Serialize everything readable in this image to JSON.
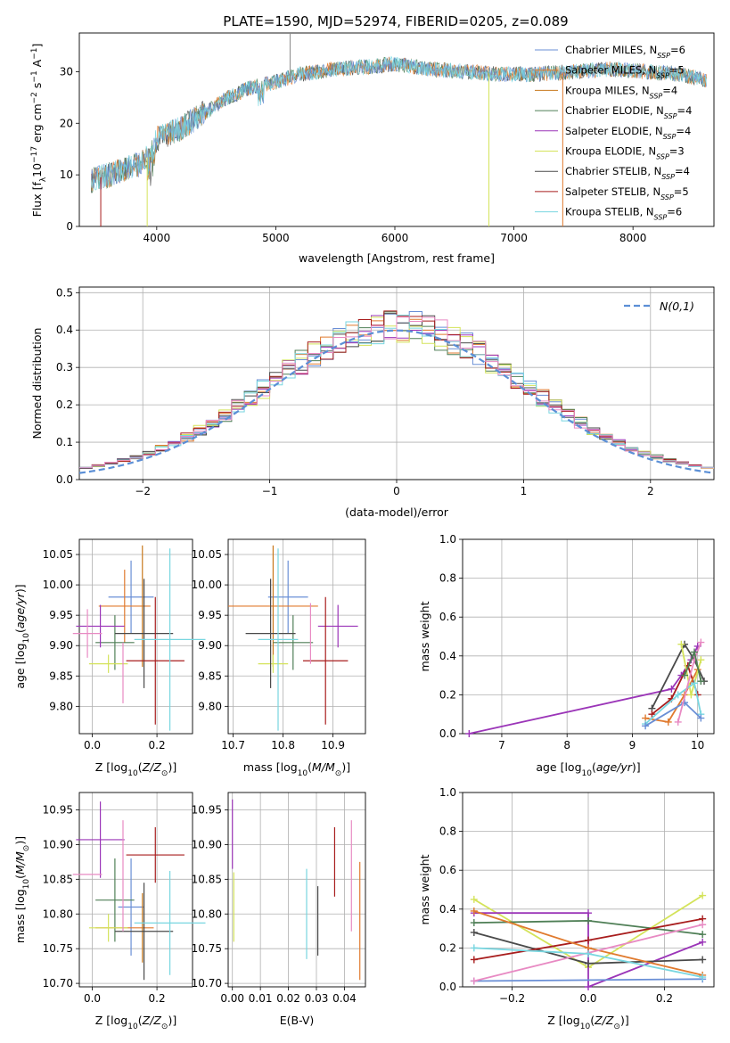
{
  "figure": {
    "title": "PLATE=1590, MJD=52974, FIBERID=0205, z=0.089"
  },
  "colors": {
    "Chabrier MILES": "#6a8fd6",
    "Salpeter MILES": "#e07a2e",
    "Kroupa MILES": "#c87a1e",
    "Chabrier ELODIE": "#4f7f56",
    "Salpeter ELODIE": "#9b35b8",
    "Kroupa ELODIE": "#d4e35a",
    "Chabrier STELIB": "#4a4a4a",
    "Salpeter STELIB": "#a81d1d",
    "Kroupa STELIB": "#78d6e0",
    "pink": "#e88ac3",
    "gaussian": "#5b8fd6"
  },
  "chart_data": [
    {
      "id": "spectrum",
      "type": "line",
      "title": "PLATE=1590, MJD=52974, FIBERID=0205, z=0.089",
      "xlabel": "wavelength [Angstrom, rest frame]",
      "ylabel": "Flux [f_λ 10^-17 erg cm^-2 s^-1 A^-1]",
      "xlim": [
        3350,
        8680
      ],
      "ylim": [
        0,
        37.5
      ],
      "xticks": [
        4000,
        5000,
        6000,
        7000,
        8000
      ],
      "yticks": [
        0,
        10,
        20,
        30
      ],
      "legend_position": "right",
      "legend": [
        {
          "label": "Chabrier MILES, N",
          "sub": "SSP",
          "tail": "=6"
        },
        {
          "label": "Salpeter MILES, N",
          "sub": "SSP",
          "tail": "=5"
        },
        {
          "label": "Kroupa MILES, N",
          "sub": "SSP",
          "tail": "=4"
        },
        {
          "label": "Chabrier ELODIE, N",
          "sub": "SSP",
          "tail": "=4"
        },
        {
          "label": "Salpeter ELODIE, N",
          "sub": "SSP",
          "tail": "=4"
        },
        {
          "label": "Kroupa ELODIE, N",
          "sub": "SSP",
          "tail": "=3"
        },
        {
          "label": "Chabrier STELIB, N",
          "sub": "SSP",
          "tail": "=4"
        },
        {
          "label": "Salpeter STELIB, N",
          "sub": "SSP",
          "tail": "=5"
        },
        {
          "label": "Kroupa STELIB, N",
          "sub": "SSP",
          "tail": "=6"
        }
      ],
      "continuum": [
        [
          3450,
          9
        ],
        [
          3600,
          10
        ],
        [
          3700,
          11
        ],
        [
          3850,
          12
        ],
        [
          3900,
          13
        ],
        [
          3950,
          14
        ],
        [
          4000,
          17
        ],
        [
          4200,
          19
        ],
        [
          4400,
          22
        ],
        [
          4600,
          25
        ],
        [
          4800,
          27
        ],
        [
          5000,
          28
        ],
        [
          5200,
          29.5
        ],
        [
          5500,
          30.5
        ],
        [
          5800,
          31
        ],
        [
          6000,
          31.5
        ],
        [
          6300,
          30.5
        ],
        [
          6600,
          30
        ],
        [
          6900,
          29.5
        ],
        [
          7200,
          29.5
        ],
        [
          7500,
          30
        ],
        [
          7800,
          30.5
        ],
        [
          8100,
          30
        ],
        [
          8400,
          29.5
        ],
        [
          8600,
          28.5
        ]
      ],
      "spikes": [
        {
          "x": 5120,
          "y": 37.5
        },
        {
          "x": 5120,
          "y": 37.5
        }
      ],
      "drops": [
        {
          "x": 3530,
          "label": "Salpeter STELIB"
        },
        {
          "x": 3920,
          "label": "Kroupa ELODIE"
        },
        {
          "x": 6790,
          "label": "Kroupa ELODIE"
        },
        {
          "x": 7410,
          "label": "Salpeter MILES"
        }
      ]
    },
    {
      "id": "residuals",
      "type": "line",
      "xlabel": "(data-model)/error",
      "ylabel": "Normed distribution",
      "xlim": [
        -2.5,
        2.5
      ],
      "ylim": [
        0,
        0.515
      ],
      "xticks": [
        -2,
        -1,
        0,
        1,
        2
      ],
      "yticks": [
        0.0,
        0.1,
        0.2,
        0.3,
        0.4,
        0.5
      ],
      "grid": true,
      "legend_position": "top-right",
      "gaussian_label": "N(0,1)",
      "bin_width": 0.1
    },
    {
      "id": "age_vs_Z",
      "type": "scatter",
      "xlabel": "Z [log10(Z/Z_sun)]",
      "ylabel": "age [log10(age/yr)]",
      "xlim": [
        -0.04,
        0.31
      ],
      "ylim": [
        9.755,
        10.075
      ],
      "xticks": [
        0.0,
        0.2
      ],
      "yticks": [
        9.8,
        9.85,
        9.9,
        9.95,
        10.0,
        10.05
      ],
      "grid": true,
      "points": [
        {
          "series": "Chabrier MILES",
          "x": 0.12,
          "y": 9.98,
          "xerr": 0.07,
          "yerr": 0.06
        },
        {
          "series": "Salpeter MILES",
          "x": 0.1,
          "y": 9.965,
          "xerr": 0.08,
          "yerr": 0.06
        },
        {
          "series": "Kroupa MILES",
          "x": 0.155,
          "y": 9.965,
          "xerr": 0.0,
          "yerr": 0.1
        },
        {
          "series": "Chabrier ELODIE",
          "x": 0.07,
          "y": 9.905,
          "xerr": 0.06,
          "yerr": 0.045
        },
        {
          "series": "Salpeter ELODIE",
          "x": 0.025,
          "y": 9.932,
          "xerr": 0.075,
          "yerr": 0.035
        },
        {
          "series": "Kroupa ELODIE",
          "x": 0.05,
          "y": 9.87,
          "xerr": 0.06,
          "yerr": 0.015
        },
        {
          "series": "Chabrier STELIB",
          "x": 0.16,
          "y": 9.92,
          "xerr": 0.09,
          "yerr": 0.09
        },
        {
          "series": "Salpeter STELIB",
          "x": 0.195,
          "y": 9.875,
          "xerr": 0.09,
          "yerr": 0.105
        },
        {
          "series": "Kroupa STELIB",
          "x": 0.24,
          "y": 9.91,
          "xerr": 0.11,
          "yerr": 0.15
        },
        {
          "series": "pink",
          "x": -0.015,
          "y": 9.92,
          "xerr": 0.045,
          "yerr": 0.04
        },
        {
          "series": "pink",
          "x": 0.095,
          "y": 9.855,
          "xerr": 0.0,
          "yerr": 0.05
        }
      ]
    },
    {
      "id": "age_vs_mass",
      "type": "scatter",
      "xlabel": "mass [log10(M/M_sun)]",
      "xlim": [
        10.69,
        10.965
      ],
      "ylim": [
        9.755,
        10.075
      ],
      "xticks": [
        10.7,
        10.8,
        10.9
      ],
      "yticks": [
        9.8,
        9.85,
        9.9,
        9.95,
        10.0,
        10.05
      ],
      "grid": true,
      "points": [
        {
          "series": "Chabrier MILES",
          "x": 10.81,
          "y": 9.98,
          "xerr": 0.04,
          "yerr": 0.06
        },
        {
          "series": "Salpeter MILES",
          "x": 10.78,
          "y": 9.965,
          "xerr": 0.09,
          "yerr": 0.0
        },
        {
          "series": "Kroupa MILES",
          "x": 10.78,
          "y": 9.965,
          "xerr": 0.0,
          "yerr": 0.1
        },
        {
          "series": "Chabrier ELODIE",
          "x": 10.82,
          "y": 9.905,
          "xerr": 0.04,
          "yerr": 0.045
        },
        {
          "series": "Salpeter ELODIE",
          "x": 10.91,
          "y": 9.932,
          "xerr": 0.04,
          "yerr": 0.035
        },
        {
          "series": "Kroupa ELODIE",
          "x": 10.78,
          "y": 9.87,
          "xerr": 0.03,
          "yerr": 0.015
        },
        {
          "series": "Chabrier STELIB",
          "x": 10.775,
          "y": 9.92,
          "xerr": 0.05,
          "yerr": 0.09
        },
        {
          "series": "Salpeter STELIB",
          "x": 10.885,
          "y": 9.875,
          "xerr": 0.045,
          "yerr": 0.105
        },
        {
          "series": "Kroupa STELIB",
          "x": 10.79,
          "y": 9.91,
          "xerr": 0.04,
          "yerr": 0.15
        },
        {
          "series": "pink",
          "x": 10.855,
          "y": 9.92,
          "xerr": 0.0,
          "yerr": 0.05
        }
      ]
    },
    {
      "id": "massweight_vs_age",
      "type": "line",
      "ylabel": "mass weight",
      "xlabel": "age [log10(age/yr)]",
      "xlim": [
        6.4,
        10.25
      ],
      "ylim": [
        0,
        1.0
      ],
      "xticks": [
        7,
        8,
        9,
        10
      ],
      "yticks": [
        0.0,
        0.2,
        0.4,
        0.6,
        0.8,
        1.0
      ],
      "grid": true,
      "series": [
        {
          "name": "Salpeter ELODIE",
          "points": [
            [
              6.5,
              0.0
            ],
            [
              9.6,
              0.23
            ],
            [
              9.75,
              0.3
            ],
            [
              9.9,
              0.38
            ],
            [
              10.0,
              0.45
            ]
          ]
        },
        {
          "name": "Chabrier STELIB",
          "points": [
            [
              9.3,
              0.13
            ],
            [
              9.8,
              0.46
            ],
            [
              9.95,
              0.38
            ],
            [
              10.1,
              0.27
            ]
          ]
        },
        {
          "name": "Salpeter STELIB",
          "points": [
            [
              9.3,
              0.1
            ],
            [
              9.6,
              0.18
            ],
            [
              9.85,
              0.35
            ],
            [
              10.0,
              0.2
            ]
          ]
        },
        {
          "name": "Salpeter MILES",
          "points": [
            [
              9.2,
              0.08
            ],
            [
              9.55,
              0.06
            ],
            [
              9.8,
              0.2
            ],
            [
              10.0,
              0.33
            ]
          ]
        },
        {
          "name": "Kroupa ELODIE",
          "points": [
            [
              9.75,
              0.46
            ],
            [
              9.9,
              0.2
            ],
            [
              10.05,
              0.38
            ]
          ]
        },
        {
          "name": "Kroupa STELIB",
          "points": [
            [
              9.2,
              0.05
            ],
            [
              9.7,
              0.2
            ],
            [
              9.95,
              0.26
            ],
            [
              10.05,
              0.1
            ]
          ]
        },
        {
          "name": "Chabrier MILES",
          "points": [
            [
              9.2,
              0.04
            ],
            [
              9.8,
              0.16
            ],
            [
              10.05,
              0.08
            ]
          ]
        },
        {
          "name": "pink",
          "points": [
            [
              9.7,
              0.06
            ],
            [
              9.95,
              0.38
            ],
            [
              10.05,
              0.47
            ]
          ]
        },
        {
          "name": "Chabrier ELODIE",
          "points": [
            [
              9.8,
              0.3
            ],
            [
              9.95,
              0.42
            ],
            [
              10.05,
              0.27
            ]
          ]
        }
      ]
    },
    {
      "id": "mass_vs_Z",
      "type": "scatter",
      "xlabel": "Z [log10(Z/Z_sun)]",
      "ylabel": "mass [log10(M/M_sun)]",
      "xlim": [
        -0.04,
        0.31
      ],
      "ylim": [
        10.695,
        10.975
      ],
      "xticks": [
        0.0,
        0.2
      ],
      "yticks": [
        10.7,
        10.75,
        10.8,
        10.85,
        10.9,
        10.95
      ],
      "grid": true,
      "points": [
        {
          "series": "Chabrier MILES",
          "x": 0.12,
          "y": 10.81,
          "xerr": 0.04,
          "yerr": 0.07
        },
        {
          "series": "Salpeter MILES",
          "x": 0.1,
          "y": 10.78,
          "xerr": 0.09,
          "yerr": 0.0
        },
        {
          "series": "Kroupa MILES",
          "x": 0.155,
          "y": 10.78,
          "xerr": 0.0,
          "yerr": 0.05
        },
        {
          "series": "Chabrier ELODIE",
          "x": 0.07,
          "y": 10.82,
          "xerr": 0.06,
          "yerr": 0.06
        },
        {
          "series": "Salpeter ELODIE",
          "x": 0.025,
          "y": 10.907,
          "xerr": 0.075,
          "yerr": 0.055
        },
        {
          "series": "Kroupa ELODIE",
          "x": 0.05,
          "y": 10.78,
          "xerr": 0.06,
          "yerr": 0.02
        },
        {
          "series": "Chabrier STELIB",
          "x": 0.16,
          "y": 10.775,
          "xerr": 0.09,
          "yerr": 0.07
        },
        {
          "series": "Salpeter STELIB",
          "x": 0.195,
          "y": 10.885,
          "xerr": 0.09,
          "yerr": 0.04
        },
        {
          "series": "Kroupa STELIB",
          "x": 0.24,
          "y": 10.787,
          "xerr": 0.11,
          "yerr": 0.075
        },
        {
          "series": "pink",
          "x": -0.015,
          "y": 10.857,
          "xerr": 0.045,
          "yerr": 0.0
        },
        {
          "series": "pink",
          "x": 0.095,
          "y": 10.855,
          "xerr": 0.0,
          "yerr": 0.08
        }
      ]
    },
    {
      "id": "mass_vs_EBV",
      "type": "scatter",
      "xlabel": "E(B-V)",
      "xlim": [
        -0.0015,
        0.0475
      ],
      "ylim": [
        10.695,
        10.975
      ],
      "xticks": [
        0.0,
        0.01,
        0.02,
        0.03,
        0.04
      ],
      "yticks": [
        10.7,
        10.75,
        10.8,
        10.85,
        10.9,
        10.95
      ],
      "grid": true,
      "points": [
        {
          "series": "Salpeter ELODIE",
          "x": 0.0,
          "y": 10.915,
          "xerr": 0.0,
          "yerr": 0.05
        },
        {
          "series": "Kroupa ELODIE",
          "x": 0.0005,
          "y": 10.81,
          "xerr": 0.0,
          "yerr": 0.05
        },
        {
          "series": "Kroupa STELIB",
          "x": 0.0265,
          "y": 10.8,
          "xerr": 0.0,
          "yerr": 0.065
        },
        {
          "series": "Chabrier STELIB",
          "x": 0.0305,
          "y": 10.79,
          "xerr": 0.0,
          "yerr": 0.05
        },
        {
          "series": "Salpeter STELIB",
          "x": 0.0365,
          "y": 10.875,
          "xerr": 0.0,
          "yerr": 0.05
        },
        {
          "series": "pink",
          "x": 0.0425,
          "y": 10.855,
          "xerr": 0.0,
          "yerr": 0.08
        },
        {
          "series": "Salpeter MILES",
          "x": 0.0455,
          "y": 10.79,
          "xerr": 0.0,
          "yerr": 0.085
        }
      ]
    },
    {
      "id": "massweight_vs_Z",
      "type": "line",
      "ylabel": "mass weight",
      "xlabel": "Z [log10(Z/Z_sun)]",
      "xlim": [
        -0.33,
        0.33
      ],
      "ylim": [
        0,
        1.0
      ],
      "xticks": [
        -0.2,
        0.0,
        0.2
      ],
      "yticks": [
        0.0,
        0.2,
        0.4,
        0.6,
        0.8,
        1.0
      ],
      "grid": true,
      "series": [
        {
          "name": "Kroupa ELODIE",
          "points": [
            [
              -0.3,
              0.45
            ],
            [
              0.0,
              0.1
            ],
            [
              0.3,
              0.47
            ]
          ]
        },
        {
          "name": "Salpeter ELODIE",
          "points": [
            [
              -0.3,
              0.38
            ],
            [
              0.0,
              0.38
            ],
            [
              0.0,
              0.0
            ],
            [
              0.3,
              0.23
            ]
          ]
        },
        {
          "name": "Chabrier ELODIE",
          "points": [
            [
              -0.3,
              0.33
            ],
            [
              0.0,
              0.34
            ],
            [
              0.3,
              0.27
            ]
          ]
        },
        {
          "name": "Chabrier STELIB",
          "points": [
            [
              -0.3,
              0.28
            ],
            [
              0.0,
              0.12
            ],
            [
              0.3,
              0.14
            ]
          ]
        },
        {
          "name": "Salpeter STELIB",
          "points": [
            [
              -0.3,
              0.14
            ],
            [
              0.0,
              0.24
            ],
            [
              0.3,
              0.35
            ]
          ]
        },
        {
          "name": "Salpeter MILES",
          "points": [
            [
              -0.3,
              0.39
            ],
            [
              0.0,
              0.2
            ],
            [
              0.3,
              0.06
            ]
          ]
        },
        {
          "name": "Chabrier MILES",
          "points": [
            [
              -0.3,
              0.03
            ],
            [
              0.3,
              0.04
            ]
          ]
        },
        {
          "name": "pink",
          "points": [
            [
              -0.3,
              0.03
            ],
            [
              0.3,
              0.32
            ]
          ]
        },
        {
          "name": "Kroupa STELIB",
          "points": [
            [
              -0.3,
              0.2
            ],
            [
              0.0,
              0.17
            ],
            [
              0.3,
              0.05
            ]
          ]
        }
      ]
    }
  ]
}
